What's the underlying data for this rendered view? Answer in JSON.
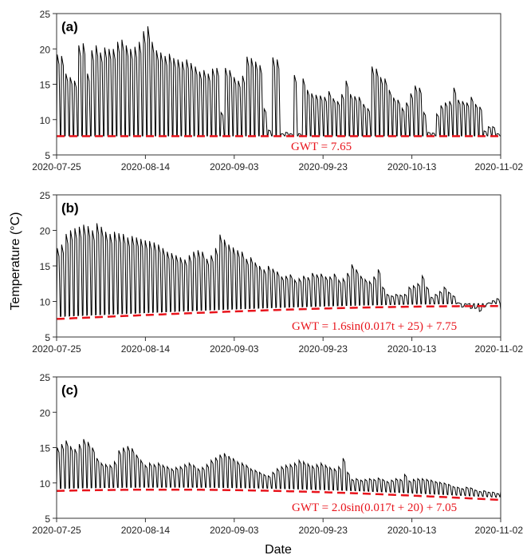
{
  "figure": {
    "ylabel": "Temperature (°C)",
    "xlabel": "Date"
  },
  "colors": {
    "trace": "#000000",
    "gwt": "#e8141c",
    "frame": "#333333"
  },
  "chart_data": [
    {
      "type": "line",
      "panel_label": "(a)",
      "x_tick_labels": [
        "2020-07-25",
        "2020-08-14",
        "2020-09-03",
        "2020-09-23",
        "2020-10-13",
        "2020-11-02"
      ],
      "xlim": [
        "2020-07-25",
        "2020-11-02"
      ],
      "ylim": [
        5,
        25
      ],
      "y_ticks": [
        5,
        10,
        15,
        20,
        25
      ],
      "grid": false,
      "annotation": "GWT = 7.65",
      "gwt": {
        "type": "constant",
        "value": 7.65
      },
      "series": [
        {
          "style": "solid",
          "daily_min": 7.7,
          "daily_max": [
            19.2,
            19.0,
            16.5,
            16.0,
            15.5,
            20.5,
            20.8,
            16.5,
            19.8,
            20.5,
            19.5,
            20.2,
            20.0,
            20.0,
            21.0,
            21.3,
            20.5,
            20.0,
            20.3,
            21.0,
            22.5,
            23.2,
            21.0,
            19.8,
            19.5,
            19.0,
            19.3,
            18.7,
            18.5,
            18.2,
            18.5,
            18.0,
            17.5,
            16.8,
            17.0,
            16.5,
            17.2,
            17.3,
            11.0,
            17.3,
            17.0,
            16.0,
            15.5,
            16.2,
            18.9,
            18.7,
            18.2,
            17.7,
            11.5,
            8.5,
            18.8,
            18.5,
            8.0,
            8.2,
            8.0,
            16.3,
            8.0,
            15.8,
            14.2,
            13.7,
            13.5,
            13.4,
            13.2,
            14.0,
            13.0,
            12.6,
            13.6,
            15.5,
            13.6,
            13.3,
            13.2,
            12.2,
            11.6,
            17.5,
            17.2,
            16.0,
            15.8,
            14.2,
            13.1,
            12.8,
            11.6,
            12.4,
            13.7,
            14.8,
            14.5,
            11.0,
            8.2,
            8.1,
            10.8,
            12.0,
            12.4,
            12.6,
            14.5,
            12.8,
            12.6,
            12.4,
            13.2,
            12.2,
            11.8,
            8.4,
            9.0,
            9.0,
            8.0
          ]
        }
      ]
    },
    {
      "type": "line",
      "panel_label": "(b)",
      "x_tick_labels": [
        "2020-07-25",
        "2020-08-14",
        "2020-09-03",
        "2020-09-23",
        "2020-10-13",
        "2020-11-02"
      ],
      "xlim": [
        "2020-07-25",
        "2020-11-02"
      ],
      "ylim": [
        5,
        25
      ],
      "y_ticks": [
        5,
        10,
        15,
        20,
        25
      ],
      "grid": false,
      "annotation": "GWT = 1.6sin(0.017t + 25) + 7.75",
      "gwt": {
        "type": "sine",
        "amplitude": 1.6,
        "frequency": 0.017,
        "phase": 25,
        "offset": 7.75
      },
      "series": [
        {
          "style": "solid",
          "daily_max": [
            17.5,
            18.0,
            19.5,
            20.0,
            20.3,
            20.5,
            20.8,
            20.6,
            20.0,
            21.0,
            20.5,
            19.8,
            19.5,
            19.8,
            19.6,
            19.5,
            19.0,
            19.2,
            19.0,
            18.8,
            18.6,
            18.5,
            18.3,
            18.0,
            17.5,
            17.0,
            16.8,
            16.5,
            16.2,
            15.9,
            16.5,
            17.0,
            17.2,
            17.0,
            16.0,
            16.5,
            17.5,
            19.4,
            18.7,
            18.0,
            17.6,
            17.2,
            17.0,
            16.0,
            16.2,
            15.5,
            15.0,
            14.5,
            15.0,
            14.6,
            14.2,
            13.5,
            13.6,
            13.8,
            13.0,
            13.2,
            13.6,
            13.4,
            14.0,
            13.8,
            13.9,
            13.5,
            13.5,
            13.9,
            13.0,
            13.2,
            14.0,
            15.2,
            14.5,
            13.6,
            13.1,
            12.8,
            13.5,
            14.5,
            12.0,
            11.0,
            10.8,
            11.0,
            10.9,
            11.0,
            12.0,
            12.2,
            12.5,
            13.6,
            12.0,
            10.6,
            11.0,
            11.4,
            12.0,
            11.3,
            10.8,
            9.8,
            9.2,
            9.6,
            9.0,
            9.0,
            8.6,
            9.2,
            9.8,
            10.1,
            10.4
          ]
        }
      ]
    },
    {
      "type": "line",
      "panel_label": "(c)",
      "x_tick_labels": [
        "2020-07-25",
        "2020-08-14",
        "2020-09-03",
        "2020-09-23",
        "2020-10-13",
        "2020-11-02"
      ],
      "xlim": [
        "2020-07-25",
        "2020-11-02"
      ],
      "ylim": [
        5,
        25
      ],
      "y_ticks": [
        5,
        10,
        15,
        20,
        25
      ],
      "grid": false,
      "annotation": "GWT = 2.0sin(0.017t + 20) + 7.05",
      "gwt": {
        "type": "sine",
        "amplitude": 2.0,
        "frequency": 0.017,
        "phase": 20,
        "offset": 7.05
      },
      "series": [
        {
          "style": "solid",
          "daily_max": [
            15.0,
            15.5,
            16.0,
            15.2,
            14.8,
            15.5,
            16.2,
            15.8,
            15.0,
            13.5,
            12.8,
            12.6,
            12.5,
            13.0,
            14.6,
            15.0,
            15.2,
            14.9,
            14.0,
            13.2,
            12.5,
            12.8,
            12.6,
            12.8,
            12.5,
            12.3,
            12.0,
            12.2,
            12.3,
            12.6,
            12.8,
            12.5,
            12.0,
            12.2,
            12.6,
            13.2,
            13.6,
            14.0,
            14.2,
            13.8,
            13.5,
            13.0,
            12.8,
            12.5,
            12.0,
            11.8,
            11.5,
            11.2,
            11.0,
            11.5,
            12.0,
            12.3,
            12.5,
            12.6,
            12.8,
            13.2,
            13.0,
            12.7,
            12.4,
            12.6,
            12.8,
            12.5,
            12.2,
            12.0,
            12.3,
            13.5,
            11.5,
            10.5,
            10.6,
            10.4,
            10.5,
            10.6,
            10.5,
            10.7,
            10.5,
            10.2,
            10.4,
            10.6,
            10.5,
            11.2,
            10.3,
            10.5,
            10.6,
            10.6,
            10.5,
            10.4,
            10.2,
            10.1,
            10.0,
            9.8,
            9.5,
            9.4,
            9.2,
            9.4,
            9.3,
            9.0,
            8.8,
            8.9,
            8.7,
            8.7,
            8.5
          ]
        }
      ]
    }
  ]
}
